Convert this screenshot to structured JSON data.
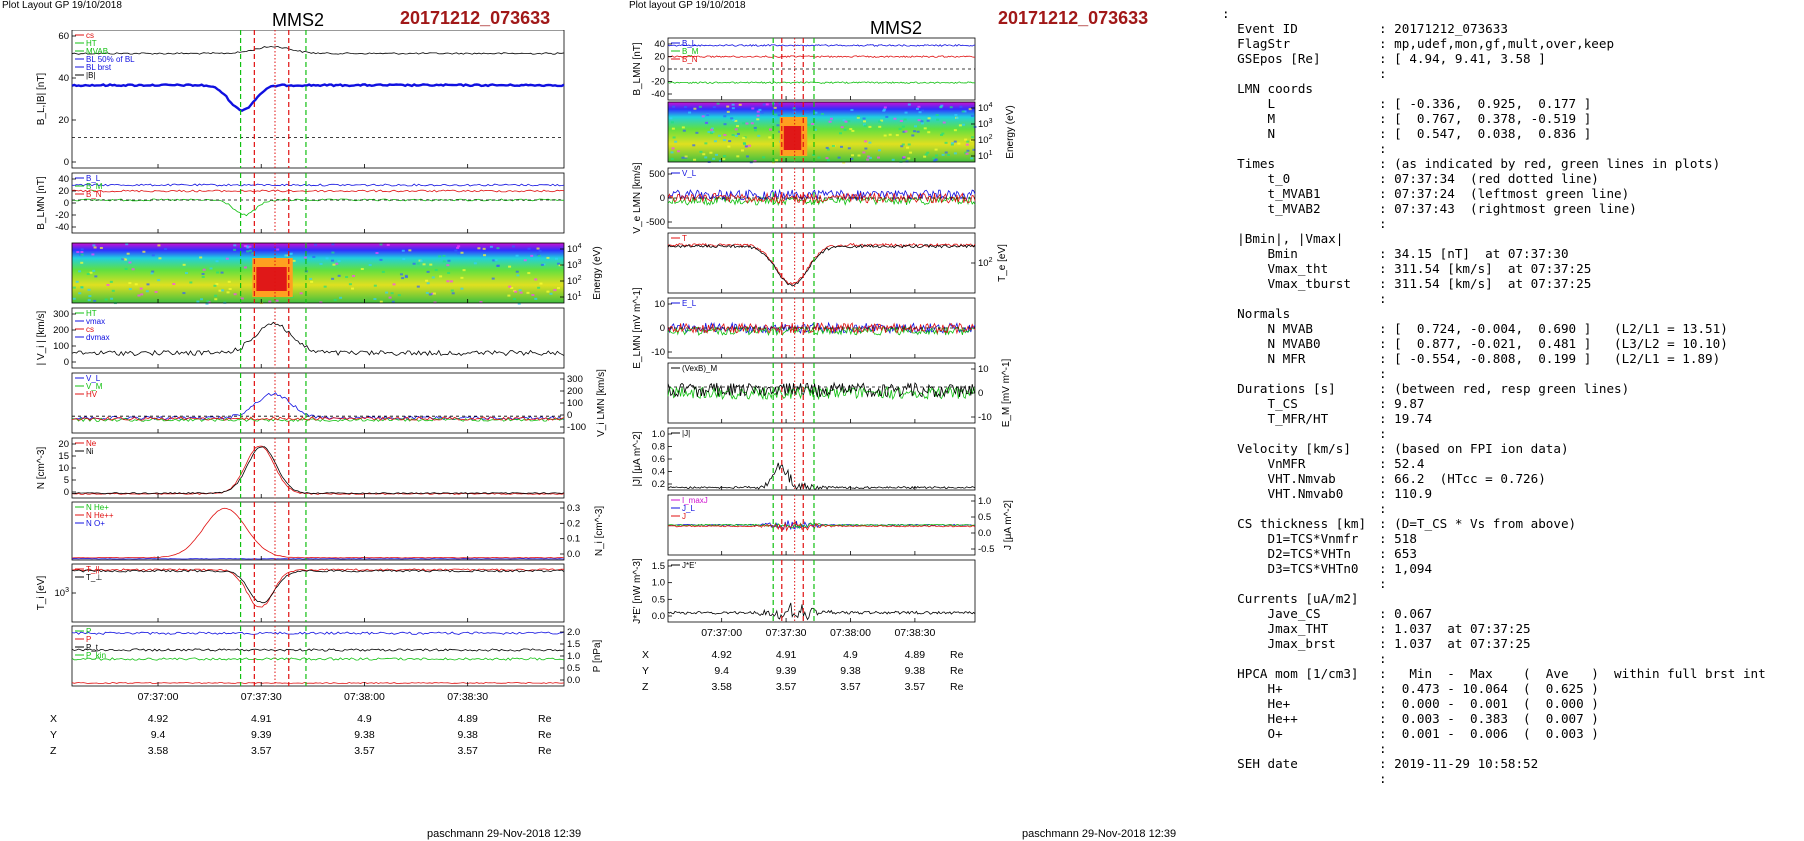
{
  "header": {
    "left_layout": "Plot Layout GP 19/10/2018",
    "right_layout": "Plot layout GP 19/10/2018",
    "spacecraft": "MMS2",
    "event": "20171212_073633"
  },
  "footer": {
    "credit": "paschmann 29-Nov-2018 12:39"
  },
  "ephemeris": {
    "rows": [
      {
        "axis": "X",
        "values": [
          "4.92",
          "4.91",
          "4.9",
          "4.89"
        ],
        "unit": "Re"
      },
      {
        "axis": "Y",
        "values": [
          "9.4",
          "9.39",
          "9.38",
          "9.38"
        ],
        "unit": "Re"
      },
      {
        "axis": "Z",
        "values": [
          "3.58",
          "3.57",
          "3.57",
          "3.57"
        ],
        "unit": "Re"
      }
    ]
  },
  "time_axis": {
    "ticks": [
      "07:37:00",
      "07:37:30",
      "07:38:00",
      "07:38:30"
    ]
  },
  "colors": {
    "red": "#e01010",
    "green": "#10c010",
    "blue": "#1010e0",
    "black": "#000000",
    "magenta": "#d010d0",
    "event": "#a11818"
  },
  "chart_data": [
    {
      "type": "line",
      "panel": "left",
      "time_range": [
        "07:36:35",
        "07:38:58"
      ],
      "markers": {
        "green_dashed": [
          "07:37:24",
          "07:37:43"
        ],
        "red_dashed": [
          "07:37:28",
          "07:37:38"
        ],
        "red_dotted": "07:37:34"
      },
      "subpanels": [
        {
          "ylabel": "B_L,|B| [nT]",
          "yticks": [
            "60",
            "40",
            "20",
            "0"
          ],
          "legend": [
            "cs",
            "HT",
            "MVAB",
            "BL 50% of BL",
            "BL brst",
            "|B|"
          ]
        },
        {
          "ylabel": "B_LMN [nT]",
          "yticks": [
            "40",
            "20",
            "0",
            "-20",
            "-40"
          ],
          "series_labels": [
            "B_L",
            "B_M",
            "B_N"
          ]
        },
        {
          "ylabel": "Energy (eV)",
          "yticks": [
            "10^4",
            "10^3",
            "10^2",
            "10^1"
          ],
          "kind": "spectrogram"
        },
        {
          "ylabel": "| V_i | [km/s]",
          "yticks": [
            "300",
            "200",
            "100",
            "0"
          ],
          "legend": [
            "HT",
            "vmax",
            "cs",
            "dvmax"
          ]
        },
        {
          "ylabel": "V_i LMN [km/s]",
          "yticks": [
            "300",
            "200",
            "100",
            "0",
            "-100"
          ],
          "series_labels": [
            "V_L",
            "V_M",
            "HV"
          ]
        },
        {
          "ylabel": "N [cm^-3]",
          "yticks": [
            "20",
            "15",
            "10",
            "5",
            "0"
          ],
          "legend": [
            "Ne",
            "Ni"
          ]
        },
        {
          "ylabel": "N_i [cm^-3]",
          "yticks": [
            "0.3",
            "0.2",
            "0.1",
            "0.0"
          ],
          "legend": [
            "N He+",
            "N He++",
            "N O+"
          ]
        },
        {
          "ylabel": "T_i [eV]",
          "yticks": [
            "10^3"
          ],
          "series_labels": [
            "T_||",
            "T_⊥"
          ]
        },
        {
          "ylabel": "P [nPa]",
          "yticks": [
            "2.0",
            "1.5",
            "1.0",
            "0.5",
            "0.0"
          ],
          "series_labels": [
            "P",
            "P",
            "P_t",
            "P_kin"
          ]
        }
      ]
    },
    {
      "type": "line",
      "panel": "right",
      "time_range": [
        "07:36:35",
        "07:38:58"
      ],
      "markers": {
        "green_dashed": [
          "07:37:24",
          "07:37:43"
        ],
        "red_dashed": [
          "07:37:28",
          "07:37:38"
        ],
        "red_dotted": "07:37:34"
      },
      "subpanels": [
        {
          "ylabel": "B_LMN [nT]",
          "yticks": [
            "40",
            "20",
            "0",
            "-20",
            "-40"
          ],
          "series_labels": [
            "B_L",
            "B_M",
            "B_N"
          ]
        },
        {
          "ylabel": "Energy (eV)",
          "yticks": [
            "10^4",
            "10^3",
            "10^2",
            "10^1"
          ],
          "kind": "spectrogram"
        },
        {
          "ylabel": "V_e LMN [km/s]",
          "yticks": [
            "500",
            "0",
            "-500"
          ],
          "series_labels": [
            "V_L"
          ]
        },
        {
          "ylabel": "T_e [eV]",
          "yticks": [
            "10^2"
          ],
          "series_labels": [
            "T"
          ]
        },
        {
          "ylabel": "E_LMN [mV m^-1]",
          "yticks": [
            "10",
            "0",
            "-10"
          ],
          "series_labels": [
            "E_L"
          ]
        },
        {
          "ylabel": "E_M [mV m^-1]",
          "yticks": [
            "10",
            "0",
            "-10"
          ],
          "series_labels": [
            "(VexB)_M"
          ]
        },
        {
          "ylabel": "|J| [μA m^-2]",
          "yticks": [
            "1.0",
            "0.8",
            "0.6",
            "0.4",
            "0.2"
          ],
          "series_labels": [
            "|J|"
          ]
        },
        {
          "ylabel": "J [μA m^-2]",
          "yticks": [
            "1.0",
            "0.5",
            "0.0",
            "-0.5"
          ],
          "series_labels": [
            "I_maxJ",
            "J_L",
            "J"
          ]
        },
        {
          "ylabel": "J*E' [nW m^-3]",
          "yticks": [
            "1.5",
            "1.0",
            "0.5",
            "0.0"
          ],
          "series_labels": [
            "J*E'"
          ]
        }
      ]
    }
  ],
  "info": {
    "leading_colon": ":",
    "sections": [
      {
        "rows": [
          {
            "label": "Event ID",
            "value": "20171212_073633"
          },
          {
            "label": "FlagStr",
            "value": "mp,udef,mon,gf,mult,over,keep"
          },
          {
            "label": "GSEpos [Re]",
            "value": "[ 4.94, 9.41, 3.58 ]"
          }
        ]
      },
      {
        "title": "LMN coords",
        "rows": [
          {
            "label": "L",
            "value": "[ -0.336,  0.925,  0.177 ]"
          },
          {
            "label": "M",
            "value": "[  0.767,  0.378, -0.519 ]"
          },
          {
            "label": "N",
            "value": "[  0.547,  0.038,  0.836 ]"
          }
        ]
      },
      {
        "title": "Times",
        "title_value": "(as indicated by red, green lines in plots)",
        "rows": [
          {
            "label": "t_0",
            "value": "07:37:34  (red dotted line)"
          },
          {
            "label": "t_MVAB1",
            "value": "07:37:24  (leftmost green line)"
          },
          {
            "label": "t_MVAB2",
            "value": "07:37:43  (rightmost green line)"
          }
        ]
      },
      {
        "title": "|Bmin|, |Vmax|",
        "rows": [
          {
            "label": "Bmin",
            "value": "34.15 [nT]  at 07:37:30"
          },
          {
            "label": "Vmax_tht",
            "value": "311.54 [km/s]  at 07:37:25"
          },
          {
            "label": "Vmax_tburst",
            "value": "311.54 [km/s]  at 07:37:25"
          }
        ]
      },
      {
        "title": "Normals",
        "rows": [
          {
            "label": "N MVAB",
            "value": "[  0.724, -0.004,  0.690 ]   (L2/L1 = 13.51)"
          },
          {
            "label": "N MVAB0",
            "value": "[  0.877, -0.021,  0.481 ]   (L3/L2 = 10.10)"
          },
          {
            "label": "N MFR",
            "value": "[ -0.554, -0.808,  0.199 ]   (L2/L1 = 1.89)"
          }
        ]
      },
      {
        "title": "Durations [s]",
        "title_value": "(between red, resp green lines)",
        "rows": [
          {
            "label": "T_CS",
            "value": "9.87"
          },
          {
            "label": "T_MFR/HT",
            "value": "19.74"
          }
        ]
      },
      {
        "title": "Velocity [km/s]",
        "title_value": "(based on FPI ion data)",
        "rows": [
          {
            "label": "VnMFR",
            "value": "52.4"
          },
          {
            "label": "VHT.Nmvab",
            "value": "66.2  (HTcc = 0.726)"
          },
          {
            "label": "VHT.Nmvab0",
            "value": "110.9"
          }
        ]
      },
      {
        "title": "CS thickness [km]",
        "title_value": "(D=T_CS * Vs from above)",
        "rows": [
          {
            "label": "D1=TCS*Vnmfr",
            "value": "518"
          },
          {
            "label": "D2=TCS*VHTn",
            "value": "653"
          },
          {
            "label": "D3=TCS*VHTn0",
            "value": "1,094"
          }
        ]
      },
      {
        "title": "Currents [uA/m2]",
        "rows": [
          {
            "label": "Jave_CS",
            "value": "0.067"
          },
          {
            "label": "Jmax_THT",
            "value": "1.037  at 07:37:25"
          },
          {
            "label": "Jmax_brst",
            "value": "1.037  at 07:37:25"
          }
        ]
      },
      {
        "title": "HPCA mom [1/cm3]",
        "title_value": "  Min  -  Max    (  Ave   )  within full brst int",
        "rows": [
          {
            "label": "H+",
            "value": " 0.473 - 10.064  (  0.625 )"
          },
          {
            "label": "He+",
            "value": " 0.000 -  0.001  (  0.000 )"
          },
          {
            "label": "He++",
            "value": " 0.003 -  0.383  (  0.007 )"
          },
          {
            "label": "O+",
            "value": " 0.001 -  0.006  (  0.003 )"
          }
        ]
      },
      {
        "title": "SEH date",
        "title_value": "2019-11-29 10:58:52",
        "rows": []
      }
    ]
  }
}
